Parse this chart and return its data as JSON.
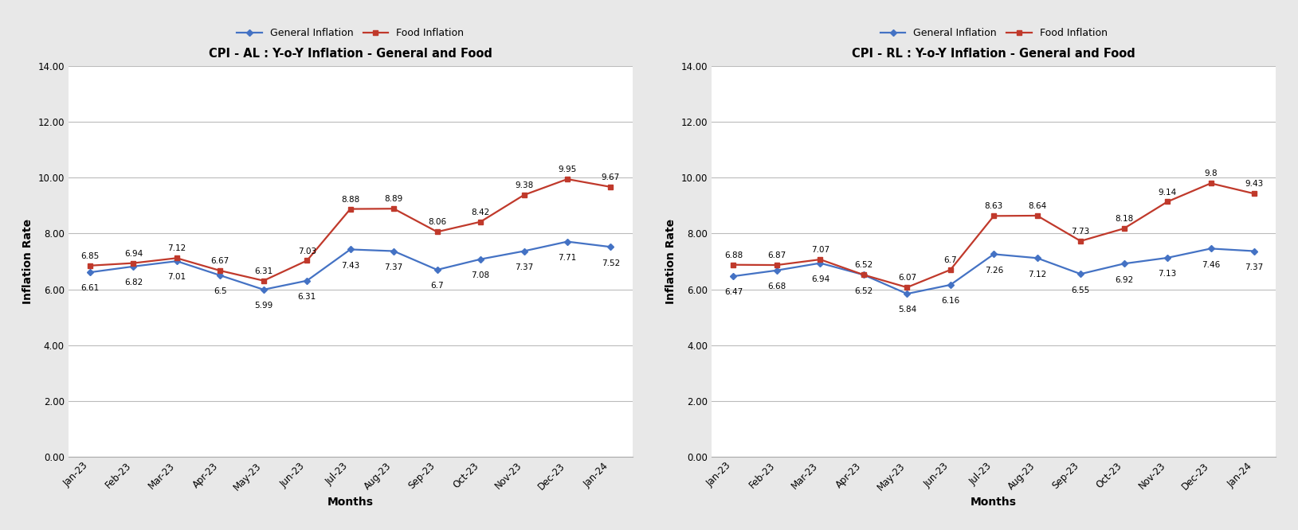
{
  "months": [
    "Jan-23",
    "Feb-23",
    "Mar-23",
    "Apr-23",
    "May-23",
    "Jun-23",
    "Jul-23",
    "Aug-23",
    "Sep-23",
    "Oct-23",
    "Nov-23",
    "Dec-23",
    "Jan-24"
  ],
  "al": {
    "title": "CPI - AL : Y-o-Y Inflation - General and Food",
    "general": [
      6.61,
      6.82,
      7.01,
      6.5,
      5.99,
      6.31,
      7.43,
      7.37,
      6.7,
      7.08,
      7.37,
      7.71,
      7.52
    ],
    "food": [
      6.85,
      6.94,
      7.12,
      6.67,
      6.31,
      7.03,
      8.88,
      8.89,
      8.06,
      8.42,
      9.38,
      9.95,
      9.67
    ]
  },
  "rl": {
    "title": "CPI - RL : Y-o-Y Inflation - General and Food",
    "general": [
      6.47,
      6.68,
      6.94,
      6.52,
      5.84,
      6.16,
      7.26,
      7.12,
      6.55,
      6.92,
      7.13,
      7.46,
      7.37
    ],
    "food": [
      6.88,
      6.87,
      7.07,
      6.52,
      6.07,
      6.7,
      8.63,
      8.64,
      7.73,
      8.18,
      9.14,
      9.8,
      9.43
    ]
  },
  "general_color": "#4472C4",
  "food_color": "#C0392B",
  "general_label": "General Inflation",
  "food_label": "Food Inflation",
  "xlabel": "Months",
  "ylabel": "Inflation Rate",
  "ylim": [
    0,
    14.0
  ],
  "yticks": [
    0.0,
    2.0,
    4.0,
    6.0,
    8.0,
    10.0,
    12.0,
    14.0
  ],
  "outer_bg_color": "#E8E8E8",
  "plot_bg_color": "#FFFFFF",
  "grid_color": "#BBBBBB",
  "title_fontsize": 10.5,
  "label_fontsize": 10,
  "tick_fontsize": 8.5,
  "annotation_fontsize": 7.5,
  "legend_fontsize": 9
}
